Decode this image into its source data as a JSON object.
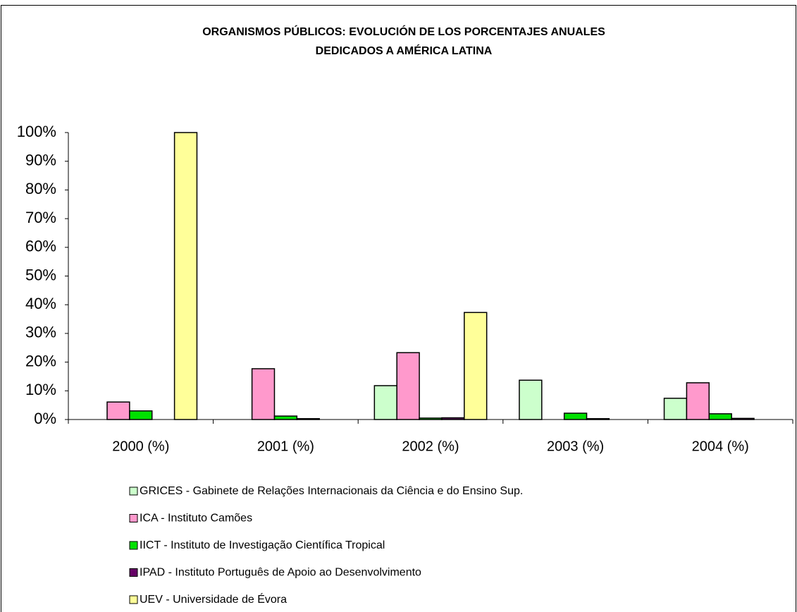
{
  "chart_data": {
    "type": "bar",
    "title": [
      "ORGANISMOS PÚBLICOS: EVOLUCIÓN DE LOS PORCENTAJES ANUALES",
      "DEDICADOS A AMÉRICA LATINA"
    ],
    "categories": [
      "2000 (%)",
      "2001 (%)",
      "2002 (%)",
      "2003 (%)",
      "2004 (%)"
    ],
    "series": [
      {
        "name": "GRICES - Gabinete de Relações Internacionais da Ciência e do Ensino Sup.",
        "color": "#ccffcc",
        "values": [
          0,
          0,
          11.8,
          13.7,
          7.4
        ]
      },
      {
        "name": "ICA - Instituto Camões",
        "color": "#ff99cc",
        "values": [
          6.1,
          17.7,
          23.3,
          0,
          12.8
        ]
      },
      {
        "name": "IICT - Instituto de Investigação Científica Tropical",
        "color": "#00e000",
        "values": [
          3,
          1.2,
          0.5,
          2.2,
          2
        ]
      },
      {
        "name": "IPAD - Instituto Português de Apoio ao Desenvolvimento",
        "color": "#660066",
        "values": [
          0,
          0.3,
          0.6,
          0.3,
          0.4
        ]
      },
      {
        "name": "UEV - Universidade de Évora",
        "color": "#ffff99",
        "values": [
          100,
          0,
          37.3,
          0,
          0
        ]
      }
    ],
    "ylim": [
      0,
      100
    ],
    "yticks": [
      {
        "value": 0,
        "label": "0%"
      },
      {
        "value": 10,
        "label": "10%"
      },
      {
        "value": 20,
        "label": "20%"
      },
      {
        "value": 30,
        "label": "30%"
      },
      {
        "value": 40,
        "label": "40%"
      },
      {
        "value": 50,
        "label": "50%"
      },
      {
        "value": 60,
        "label": "60%"
      },
      {
        "value": 70,
        "label": "70%"
      },
      {
        "value": 80,
        "label": "80%"
      },
      {
        "value": 90,
        "label": "90%"
      },
      {
        "value": 100,
        "label": "100%"
      }
    ],
    "grid": false,
    "legend": "bottom"
  }
}
